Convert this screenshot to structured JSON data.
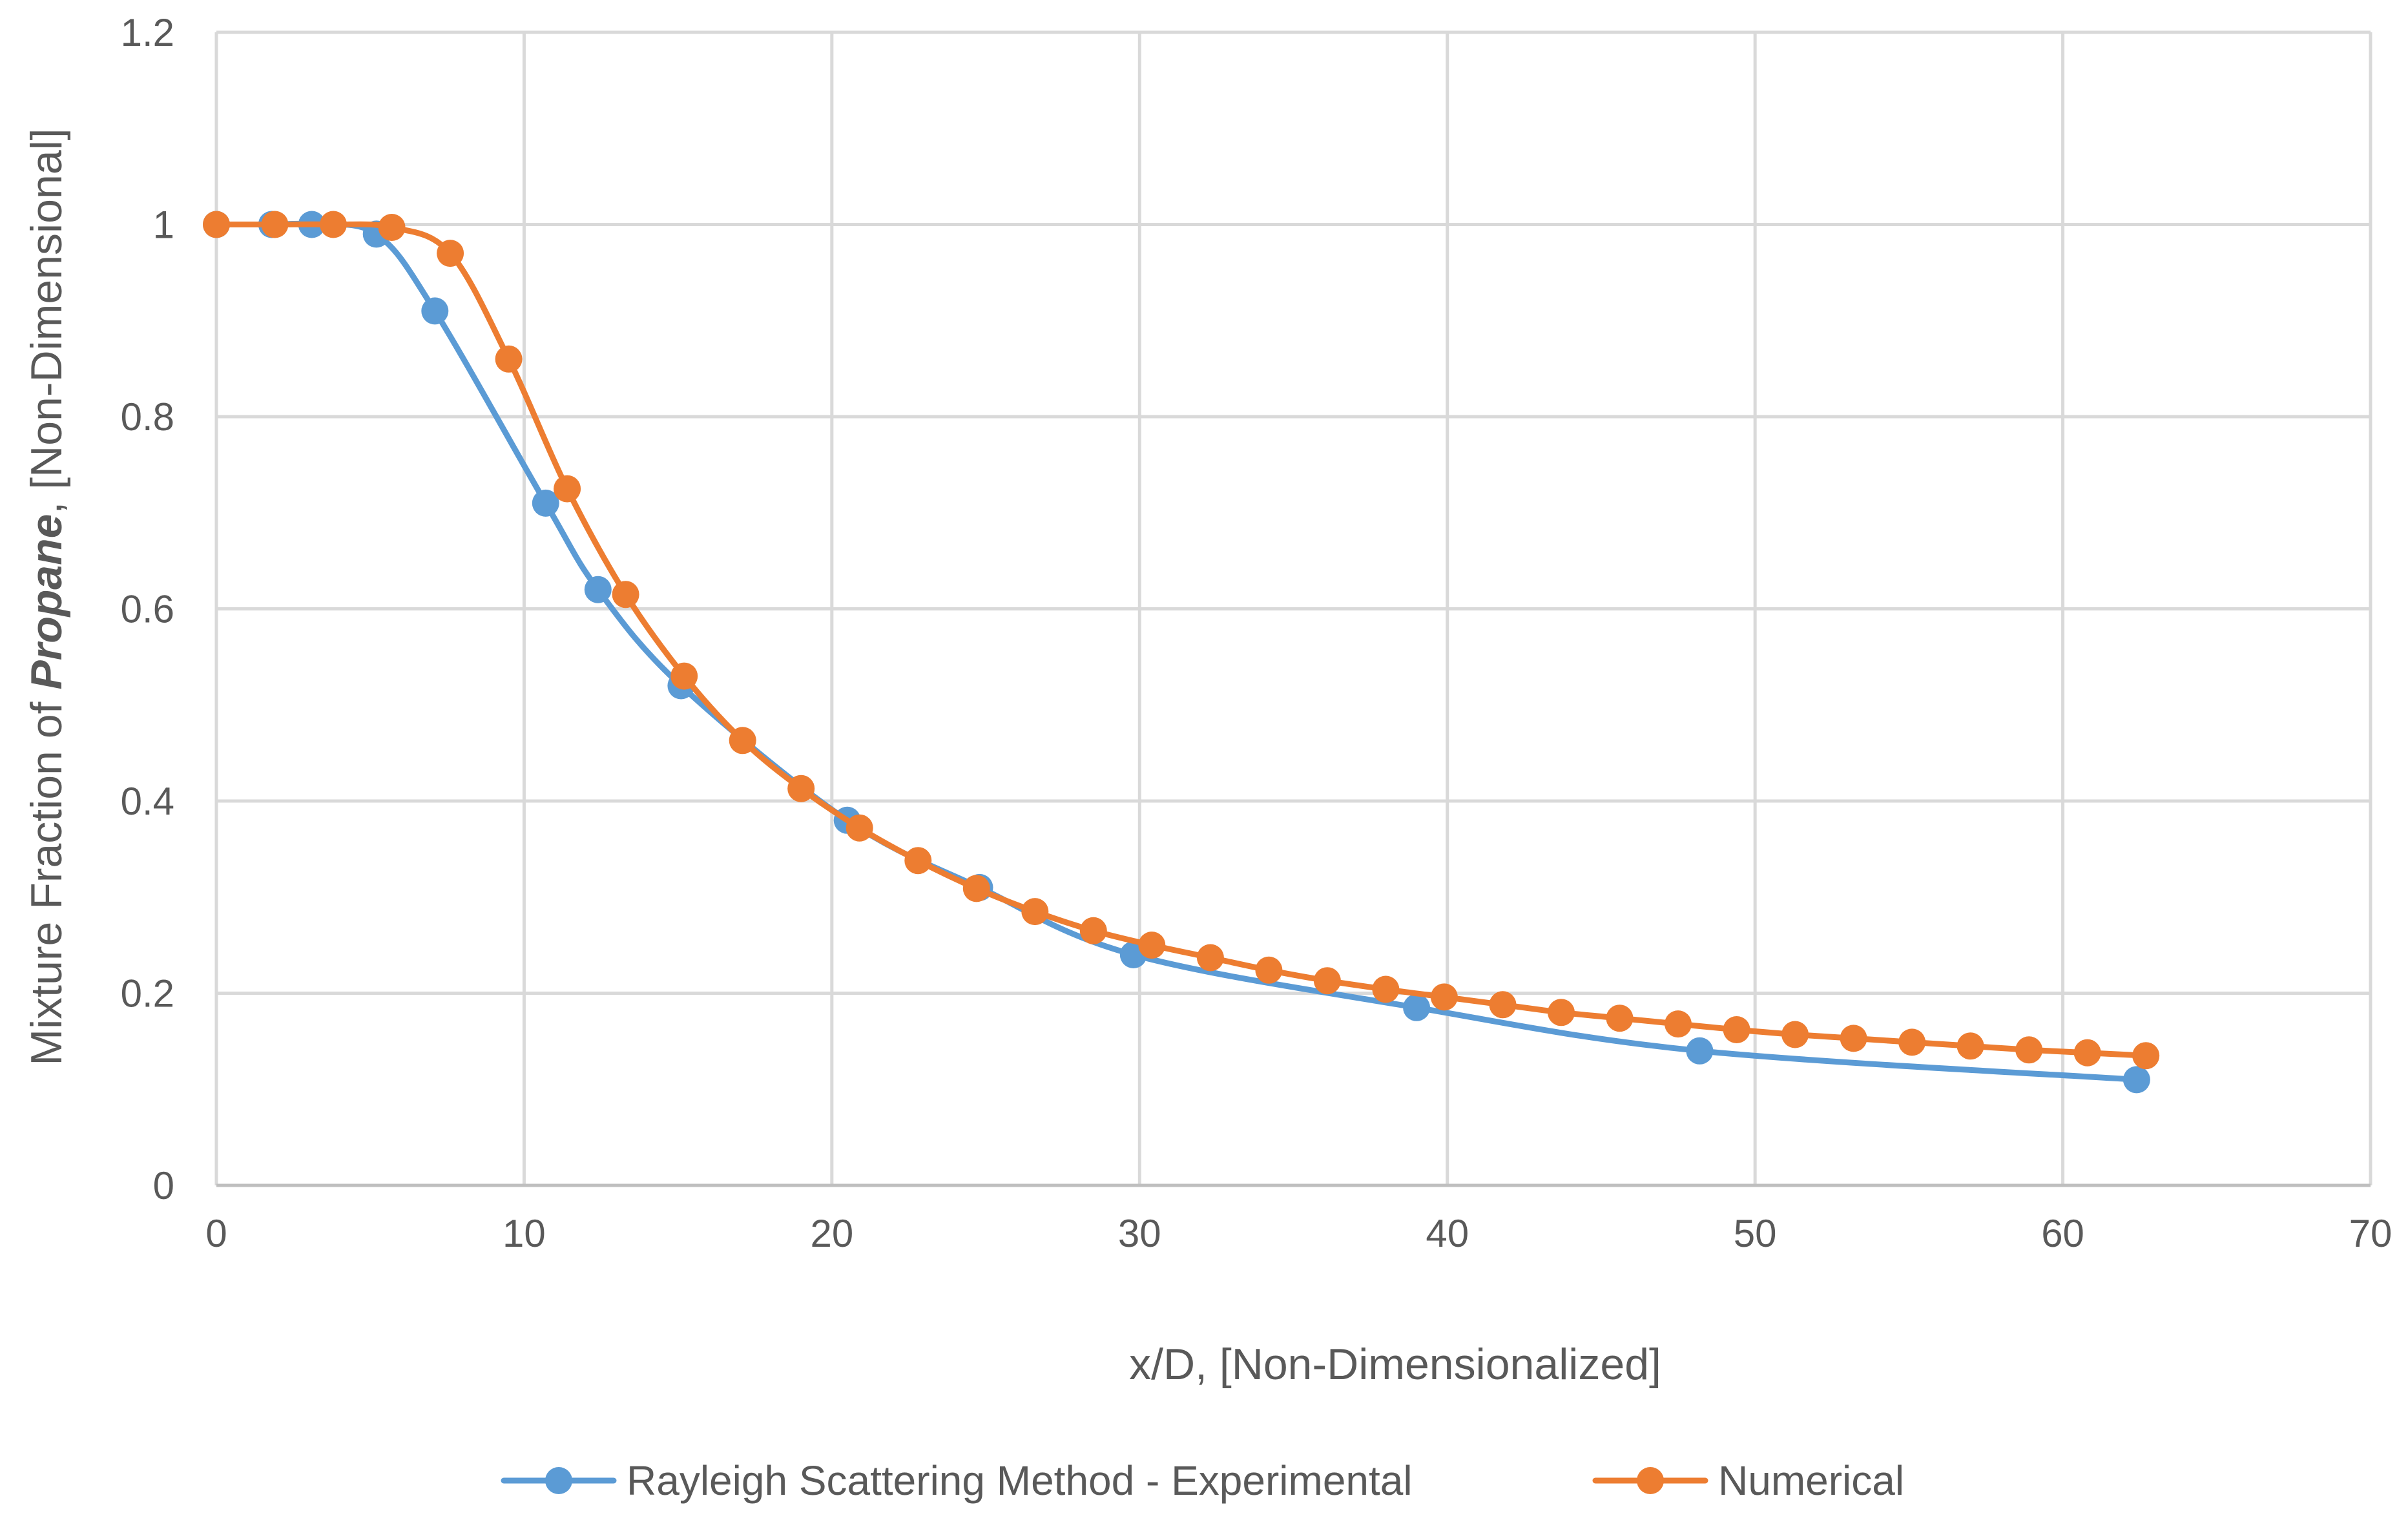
{
  "chart_data": {
    "type": "line",
    "title": "",
    "xlabel": "x/D, [Non-Dimensionalized]",
    "ylabel_parts": [
      "Mixture Fraction of ",
      "Propane",
      ", [Non-Dimensional]"
    ],
    "xlim": [
      0,
      70
    ],
    "ylim": [
      0,
      1.2
    ],
    "x_ticks": [
      0,
      10,
      20,
      30,
      40,
      50,
      60,
      70
    ],
    "y_ticks": [
      0,
      0.2,
      0.4,
      0.6,
      0.8,
      1,
      1.2
    ],
    "x_tick_labels": [
      "0",
      "10",
      "20",
      "30",
      "40",
      "50",
      "60",
      "70"
    ],
    "y_tick_labels": [
      "0",
      "0.2",
      "0.4",
      "0.6",
      "0.8",
      "1",
      "1.2"
    ],
    "grid": true,
    "legend_position": "bottom",
    "series": [
      {
        "name": "Rayleigh Scattering Method - Experimental",
        "color": "#5B9BD5",
        "x": [
          0,
          1.8,
          3.1,
          5.2,
          7.1,
          10.7,
          12.4,
          15.1,
          20.5,
          24.8,
          29.8,
          39.0,
          48.2,
          62.4
        ],
        "y": [
          1.0,
          1.0,
          1.0,
          0.99,
          0.91,
          0.71,
          0.62,
          0.52,
          0.38,
          0.31,
          0.24,
          0.185,
          0.14,
          0.11
        ]
      },
      {
        "name": "Numerical",
        "color": "#ED7D31",
        "x": [
          0,
          1.9,
          3.8,
          5.7,
          7.6,
          9.5,
          11.4,
          13.3,
          15.2,
          17.1,
          19.0,
          20.9,
          22.8,
          24.7,
          26.6,
          28.5,
          30.4,
          32.3,
          34.2,
          36.1,
          38.0,
          39.9,
          41.8,
          43.7,
          45.6,
          47.5,
          49.4,
          51.3,
          53.2,
          55.1,
          57.0,
          58.9,
          60.8,
          62.7
        ],
        "y": [
          1.0,
          1.0,
          1.0,
          0.997,
          0.97,
          0.86,
          0.725,
          0.615,
          0.53,
          0.463,
          0.413,
          0.372,
          0.338,
          0.309,
          0.285,
          0.265,
          0.25,
          0.237,
          0.224,
          0.213,
          0.204,
          0.196,
          0.188,
          0.18,
          0.174,
          0.168,
          0.162,
          0.157,
          0.153,
          0.149,
          0.145,
          0.141,
          0.138,
          0.135
        ]
      }
    ]
  }
}
